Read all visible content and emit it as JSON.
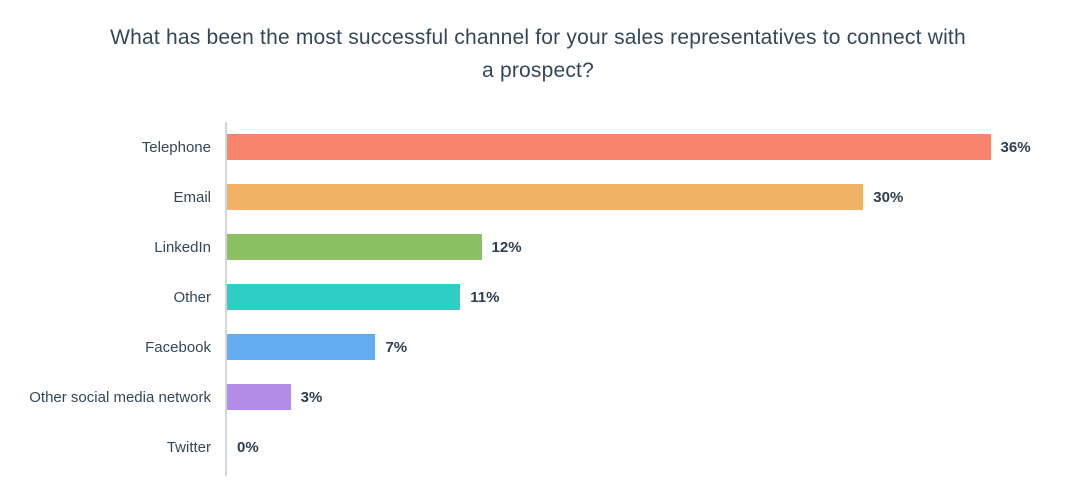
{
  "title": "What has been the most successful channel for your sales representatives to connect with a prospect?",
  "chart_data": {
    "type": "bar",
    "orientation": "horizontal",
    "title": "What has been the most successful channel for your sales representatives to connect with a prospect?",
    "categories": [
      "Telephone",
      "Email",
      "LinkedIn",
      "Other",
      "Facebook",
      "Other social media network",
      "Twitter"
    ],
    "values": [
      36,
      30,
      12,
      11,
      7,
      3,
      0
    ],
    "value_labels": [
      "36%",
      "30%",
      "12%",
      "11%",
      "7%",
      "3%",
      "0%"
    ],
    "colors": [
      "#f8846b",
      "#f0b264",
      "#8bc162",
      "#2fcec4",
      "#64adf2",
      "#b48ce8",
      "#b48ce8"
    ],
    "xlabel": "",
    "ylabel": "",
    "xlim": [
      0,
      37.2
    ],
    "grid": false,
    "legend": "none",
    "axis_color": "#cfd6dc",
    "label_color": "#33475b",
    "value_label_color": "#2d3e50"
  }
}
